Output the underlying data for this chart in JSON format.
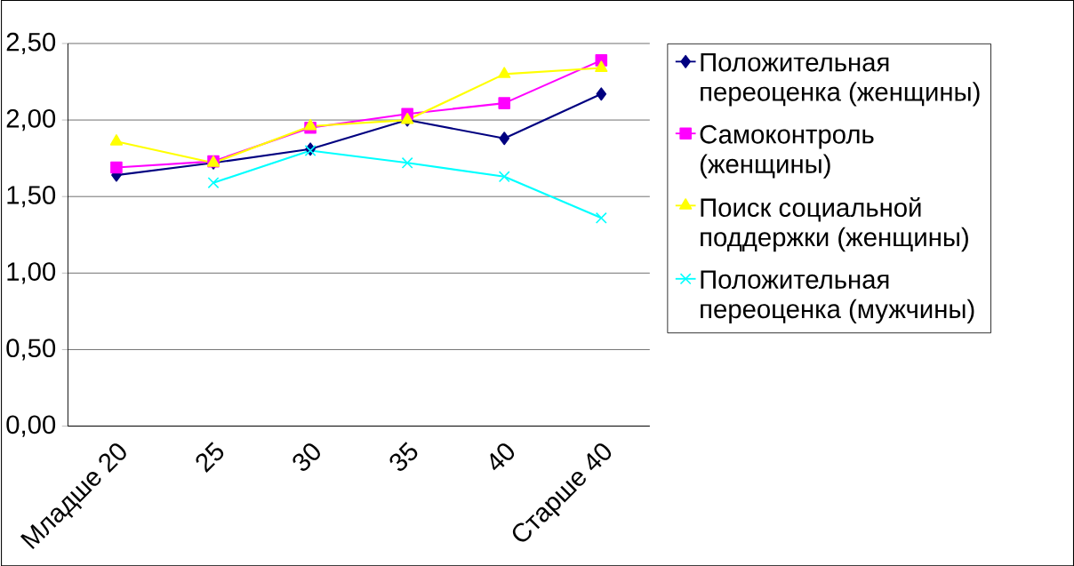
{
  "chart_data": {
    "type": "line",
    "categories": [
      "Младше 20",
      "25",
      "30",
      "35",
      "40",
      "Старше 40"
    ],
    "ylim": [
      0,
      2.5
    ],
    "yticks": [
      {
        "value": 0,
        "label": "0,00"
      },
      {
        "value": 0.5,
        "label": "0,50"
      },
      {
        "value": 1,
        "label": "1,00"
      },
      {
        "value": 1.5,
        "label": "1,50"
      },
      {
        "value": 2,
        "label": "2,00"
      },
      {
        "value": 2.5,
        "label": "2,50"
      }
    ],
    "grid": "y",
    "legend": "right",
    "line_style": "solid",
    "series": [
      {
        "name": "Положительная переоценка (женщины)",
        "color": "#000080",
        "marker": "diamond",
        "values": [
          1.64,
          1.72,
          1.81,
          2.0,
          1.88,
          2.17
        ]
      },
      {
        "name": "Самоконтроль (женщины)",
        "color": "#ff00ff",
        "marker": "square",
        "values": [
          1.69,
          1.73,
          1.95,
          2.04,
          2.11,
          2.39
        ]
      },
      {
        "name": "Поиск социальной поддержки (женщины)",
        "color": "#ffff00",
        "marker": "triangle",
        "values": [
          1.86,
          1.72,
          1.96,
          2.0,
          2.3,
          2.34
        ]
      },
      {
        "name": "Положительная переоценка (мужчины)",
        "color": "#00ffff",
        "marker": "cross",
        "values": [
          null,
          1.59,
          1.8,
          1.72,
          1.63,
          1.36
        ]
      }
    ]
  }
}
